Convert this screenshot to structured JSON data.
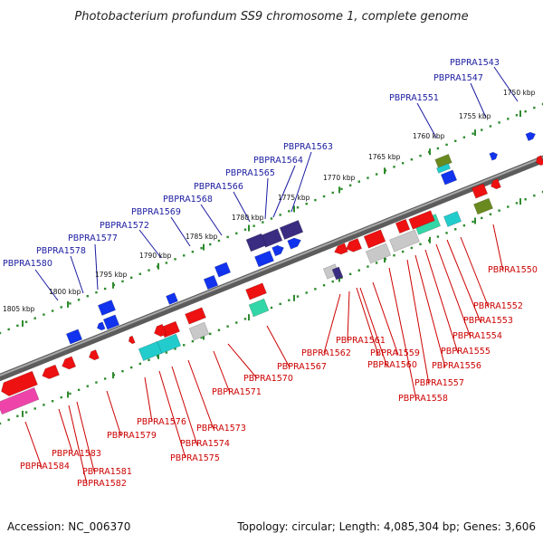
{
  "title": "Photobacterium profundum SS9 chromosome 1, complete genome",
  "accession": "Accession: NC_006370",
  "summary": "Topology: circular; Length: 4,085,304 bp; Genes: 3,606",
  "colors": {
    "backbone": "#7a7a7a",
    "ruler_dots": "#2e8b2e",
    "upper_labels": "#1a1aa0",
    "lower_labels": "#cc0000",
    "gene_red": "#ee1111",
    "gene_blue": "#1133ee",
    "gene_navy": "#3a2c80",
    "gene_cyan": "#22cccc",
    "gene_grey": "#c8c8c8",
    "gene_teal": "#33d6a6",
    "gene_olive": "#6a8a20",
    "gene_magenta": "#ee44aa"
  },
  "ruler_upper": [
    "1750 kbp",
    "1755 kbp",
    "1760 kbp",
    "1765 kbp",
    "1770 kbp",
    "1775 kbp",
    "1780 kbp",
    "1785 kbp",
    "1790 kbp",
    "1795 kbp",
    "1800 kbp",
    "1805 kbp"
  ],
  "upper_labels": [
    "PBPRA1543",
    "PBPRA1547",
    "PBPRA1551",
    "PBPRA1563",
    "PBPRA1564",
    "PBPRA1565",
    "PBPRA1566",
    "PBPRA1568",
    "PBPRA1569",
    "PBPRA1572",
    "PBPRA1577",
    "PBPRA1578",
    "PBPRA1580"
  ],
  "lower_labels": [
    "PBPRA1550",
    "PBPRA1552",
    "PBPRA1553",
    "PBPRA1554",
    "PBPRA1555",
    "PBPRA1556",
    "PBPRA1557",
    "PBPRA1558",
    "PBPRA1559",
    "PBPRA1560",
    "PBPRA1561",
    "PBPRA1562",
    "PBPRA1567",
    "PBPRA1570",
    "PBPRA1571",
    "PBPRA1573",
    "PBPRA1574",
    "PBPRA1575",
    "PBPRA1576",
    "PBPRA1579",
    "PBPRA1581",
    "PBPRA1582",
    "PBPRA1583",
    "PBPRA1584"
  ]
}
